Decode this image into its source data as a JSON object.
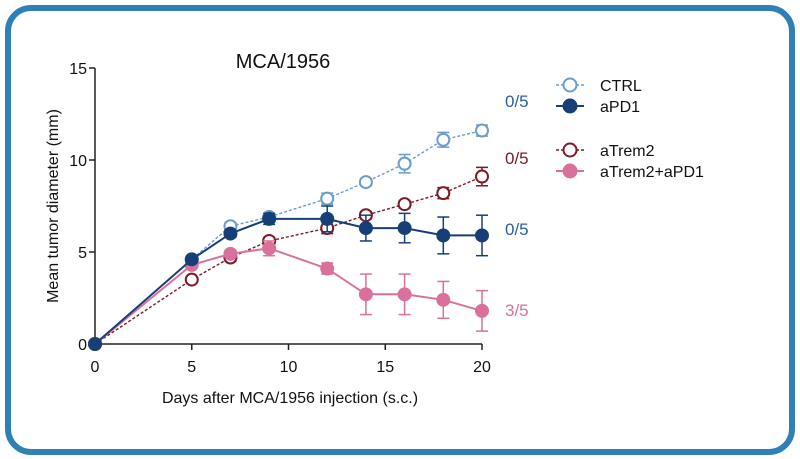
{
  "colors": {
    "frame": "#2f80b7",
    "ctrl": "#6b9ccc",
    "apd1": "#173f77",
    "atrem2": "#7a1b25",
    "atrem2_apd1": "#d9719c",
    "annot_blue": "#2c5f9a",
    "annot_red": "#7a1b25",
    "annot_pink": "#d9719c"
  },
  "chart_data": {
    "type": "line",
    "title": "MCA/1956",
    "xlabel": "Days after MCA/1956 injection (s.c.)",
    "ylabel": "Mean tumor diameter (mm)",
    "xlim": [
      0,
      20
    ],
    "ylim": [
      0,
      15
    ],
    "xticks": [
      0,
      5,
      10,
      15,
      20
    ],
    "yticks": [
      0,
      5,
      10,
      15
    ],
    "grid": false,
    "legend_position": "top-right",
    "series": [
      {
        "name": "CTRL",
        "color_key": "ctrl",
        "marker": "open-circle",
        "line": "dashed",
        "x": [
          0,
          5,
          7,
          9,
          12,
          14,
          16,
          18,
          20
        ],
        "y": [
          0,
          4.6,
          6.4,
          6.9,
          7.9,
          8.8,
          9.8,
          11.1,
          11.6
        ],
        "err": [
          0,
          0,
          0.2,
          0.2,
          0.3,
          0.2,
          0.5,
          0.4,
          0.3
        ]
      },
      {
        "name": "aPD1",
        "color_key": "apd1",
        "marker": "filled-circle",
        "line": "solid",
        "x": [
          0,
          5,
          7,
          9,
          12,
          14,
          16,
          18,
          20
        ],
        "y": [
          0,
          4.6,
          6.0,
          6.8,
          6.8,
          6.3,
          6.3,
          5.9,
          5.9
        ],
        "err": [
          0,
          0,
          0.2,
          0.3,
          0.7,
          0.7,
          0.8,
          1.0,
          1.1
        ]
      },
      {
        "name": "aTrem2",
        "color_key": "atrem2",
        "marker": "open-circle",
        "line": "dashed",
        "x": [
          0,
          5,
          7,
          9,
          12,
          14,
          16,
          18,
          20
        ],
        "y": [
          0,
          3.5,
          4.7,
          5.6,
          6.3,
          7.0,
          7.6,
          8.2,
          9.1
        ],
        "err": [
          0,
          0,
          0.2,
          0.2,
          0.3,
          0.2,
          0.2,
          0.3,
          0.5
        ]
      },
      {
        "name": "aTrem2+aPD1",
        "color_key": "atrem2_apd1",
        "marker": "filled-circle",
        "line": "solid",
        "x": [
          0,
          5,
          7,
          9,
          12,
          14,
          16,
          18,
          20
        ],
        "y": [
          0,
          4.3,
          4.9,
          5.2,
          4.1,
          2.7,
          2.7,
          2.4,
          1.8
        ],
        "err": [
          0,
          0,
          0.2,
          0.4,
          0.3,
          1.1,
          1.1,
          1.0,
          1.1
        ]
      }
    ],
    "annotations": [
      {
        "text": "0/5",
        "series": "CTRL",
        "color_key": "annot_blue"
      },
      {
        "text": "0/5",
        "series": "aTrem2",
        "color_key": "annot_red"
      },
      {
        "text": "0/5",
        "series": "aPD1",
        "color_key": "annot_blue"
      },
      {
        "text": "3/5",
        "series": "aTrem2+aPD1",
        "color_key": "annot_pink"
      }
    ]
  }
}
